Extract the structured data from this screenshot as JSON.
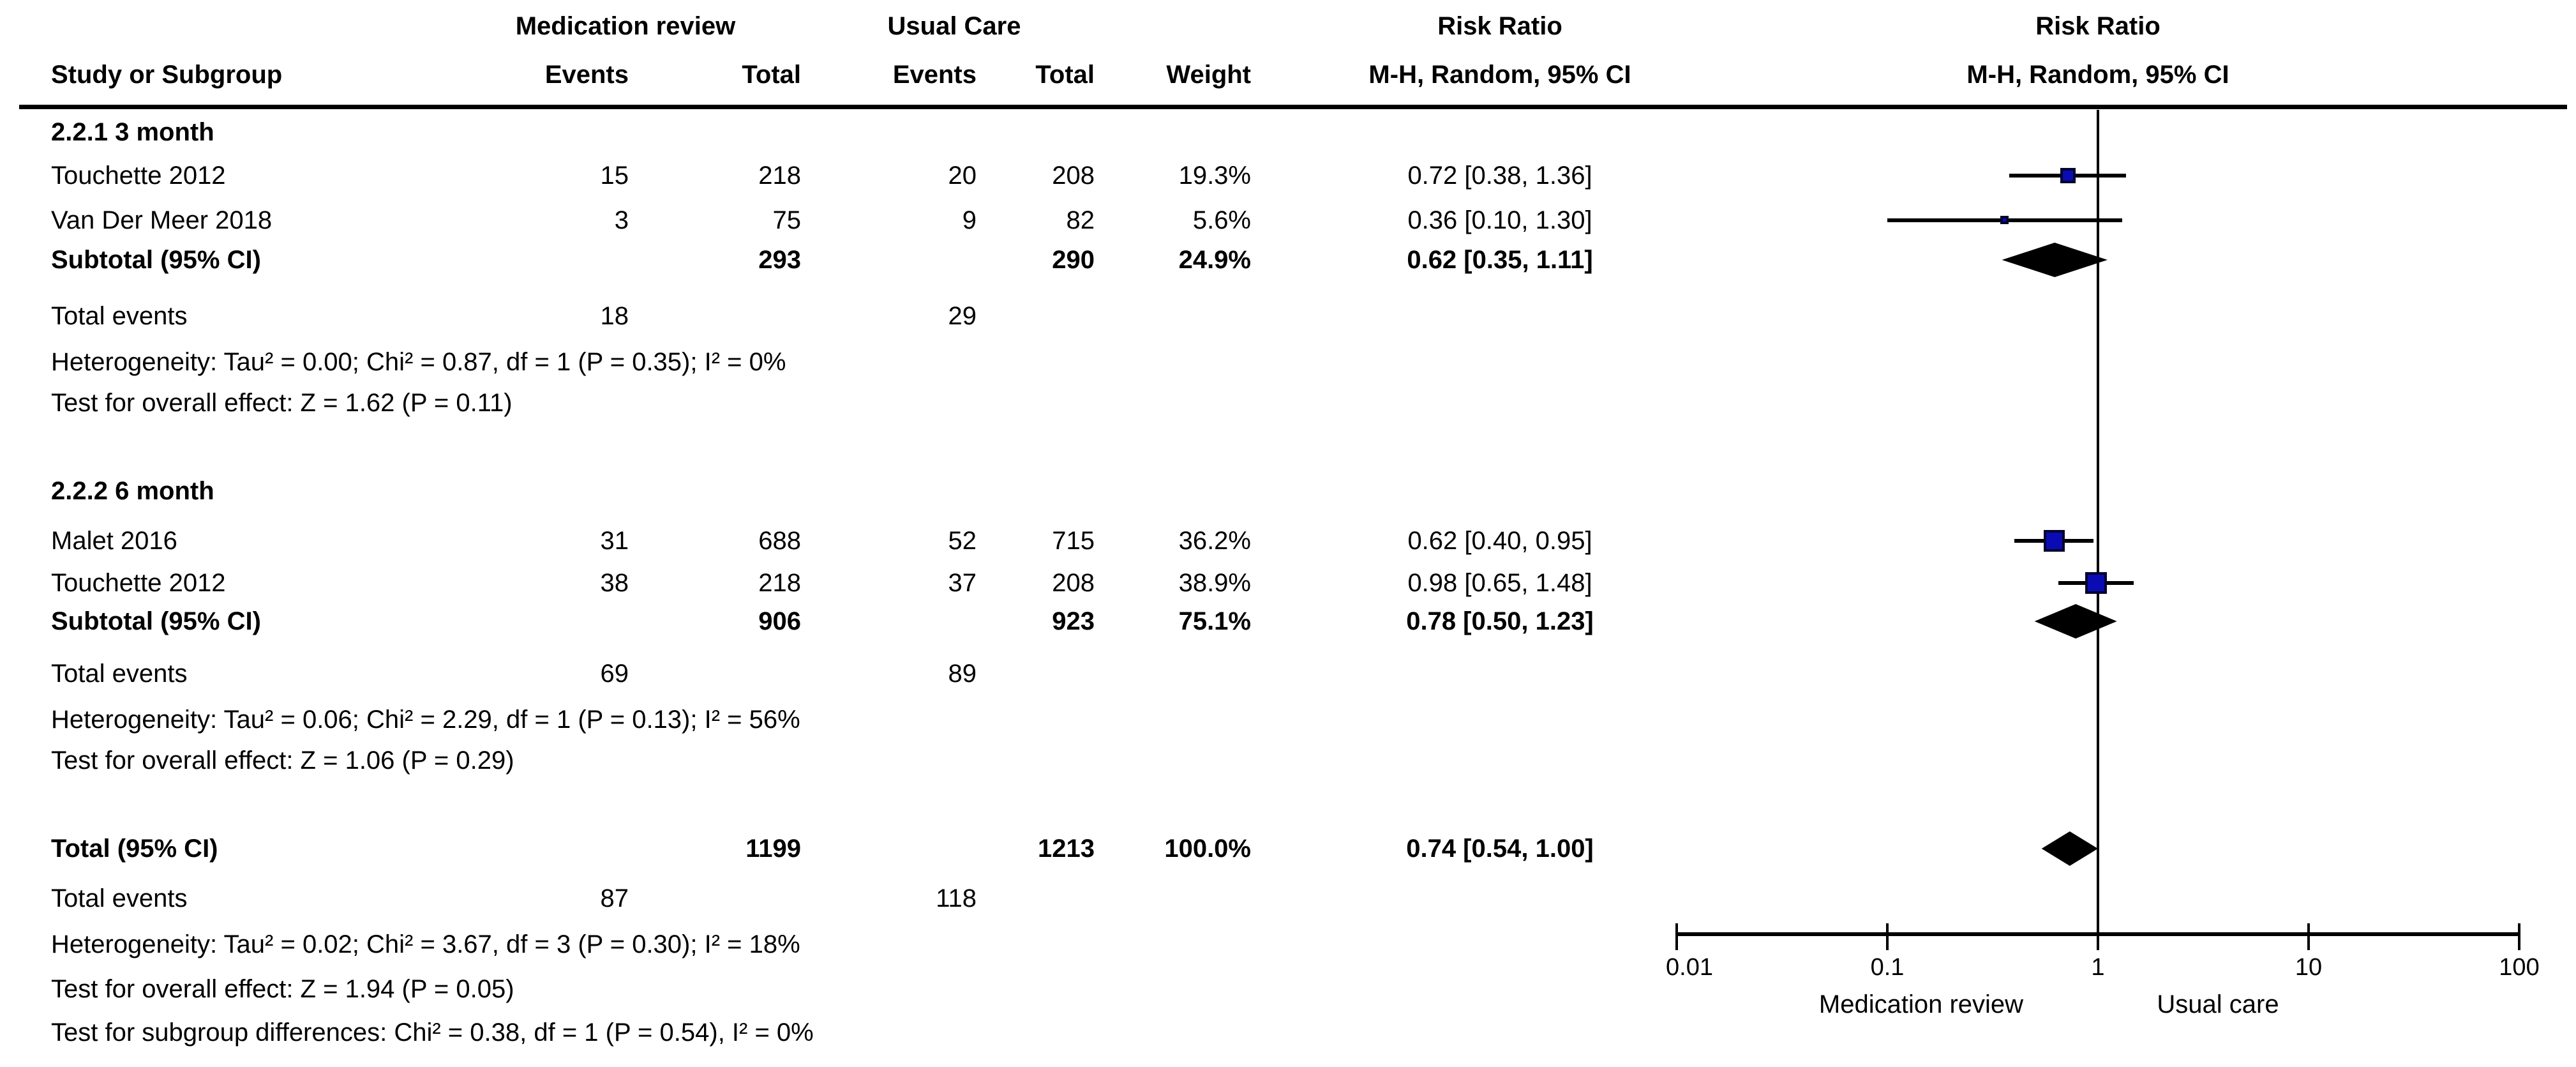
{
  "header": {
    "group1": "Medication review",
    "group2": "Usual Care",
    "rr": "Risk Ratio",
    "method": "M-H, Random, 95% CI",
    "study": "Study or Subgroup",
    "events": "Events",
    "total": "Total",
    "weight": "Weight"
  },
  "sections": [
    {
      "label": "2.2.1 3 month",
      "rows": [
        {
          "name": "Touchette 2012",
          "e1": "15",
          "t1": "218",
          "e2": "20",
          "t2": "208",
          "w": "19.3%",
          "rr": "0.72 [0.38, 1.36]"
        },
        {
          "name": "Van Der Meer 2018",
          "e1": "3",
          "t1": "75",
          "e2": "9",
          "t2": "82",
          "w": "5.6%",
          "rr": "0.36 [0.10, 1.30]"
        }
      ],
      "subtotal": {
        "label": "Subtotal (95% CI)",
        "t1": "293",
        "t2": "290",
        "w": "24.9%",
        "rr": "0.62 [0.35, 1.11]"
      },
      "total_events": {
        "label": "Total events",
        "e1": "18",
        "e2": "29"
      },
      "heterogeneity": "Heterogeneity: Tau² = 0.00; Chi² = 0.87, df = 1 (P = 0.35); I² = 0%",
      "overall_effect": "Test for overall effect: Z = 1.62 (P = 0.11)"
    },
    {
      "label": "2.2.2 6 month",
      "rows": [
        {
          "name": "Malet 2016",
          "e1": "31",
          "t1": "688",
          "e2": "52",
          "t2": "715",
          "w": "36.2%",
          "rr": "0.62 [0.40, 0.95]"
        },
        {
          "name": "Touchette 2012",
          "e1": "38",
          "t1": "218",
          "e2": "37",
          "t2": "208",
          "w": "38.9%",
          "rr": "0.98 [0.65, 1.48]"
        }
      ],
      "subtotal": {
        "label": "Subtotal (95% CI)",
        "t1": "906",
        "t2": "923",
        "w": "75.1%",
        "rr": "0.78 [0.50, 1.23]"
      },
      "total_events": {
        "label": "Total events",
        "e1": "69",
        "e2": "89"
      },
      "heterogeneity": "Heterogeneity: Tau² = 0.06; Chi² = 2.29, df = 1 (P = 0.13); I² = 56%",
      "overall_effect": "Test for overall effect: Z = 1.06 (P = 0.29)"
    }
  ],
  "total": {
    "row": {
      "label": "Total (95% CI)",
      "t1": "1199",
      "t2": "1213",
      "w": "100.0%",
      "rr": "0.74 [0.54, 1.00]"
    },
    "total_events": {
      "label": "Total events",
      "e1": "87",
      "e2": "118"
    },
    "heterogeneity": "Heterogeneity: Tau² = 0.02; Chi² = 3.67, df = 3 (P = 0.30); I² = 18%",
    "overall_effect": "Test for overall effect: Z = 1.94 (P = 0.05)",
    "subgroup_differences": "Test for subgroup differences: Chi² = 0.38, df = 1 (P = 0.54), I² = 0%"
  },
  "axis": {
    "tick_labels": [
      "0.01",
      "0.1",
      "1",
      "10",
      "100"
    ],
    "left_label": "Medication review",
    "right_label": "Usual care"
  },
  "colors": {
    "marker_blue": "#0b0bb4",
    "diamond_black": "#000000",
    "line_black": "#000000"
  },
  "chart_data": {
    "type": "forest",
    "effect_measure": "Risk Ratio, M-H, Random, 95% CI",
    "x_scale": "log10",
    "x_ticks": [
      0.01,
      0.1,
      1,
      10,
      100
    ],
    "null_line_at": 1,
    "xlabel_left": "Medication review",
    "xlabel_right": "Usual care",
    "rows": [
      {
        "kind": "study",
        "row_id": "r-g1-s1",
        "section": "2.2.1 3 month",
        "label": "Touchette 2012",
        "value": 0.72,
        "ci_low": 0.38,
        "ci_high": 1.36,
        "weight_pct": 19.3
      },
      {
        "kind": "study",
        "row_id": "r-g1-s2",
        "section": "2.2.1 3 month",
        "label": "Van Der Meer 2018",
        "value": 0.36,
        "ci_low": 0.1,
        "ci_high": 1.3,
        "weight_pct": 5.6
      },
      {
        "kind": "diamond",
        "row_id": "r-g1-sub",
        "section": "2.2.1 3 month",
        "label": "Subtotal (95% CI)",
        "value": 0.62,
        "ci_low": 0.35,
        "ci_high": 1.11
      },
      {
        "kind": "study",
        "row_id": "r-g2-s1",
        "section": "2.2.2 6 month",
        "label": "Malet 2016",
        "value": 0.62,
        "ci_low": 0.4,
        "ci_high": 0.95,
        "weight_pct": 36.2
      },
      {
        "kind": "study",
        "row_id": "r-g2-s2",
        "section": "2.2.2 6 month",
        "label": "Touchette 2012",
        "value": 0.98,
        "ci_low": 0.65,
        "ci_high": 1.48,
        "weight_pct": 38.9
      },
      {
        "kind": "diamond",
        "row_id": "r-g2-sub",
        "section": "2.2.2 6 month",
        "label": "Subtotal (95% CI)",
        "value": 0.78,
        "ci_low": 0.5,
        "ci_high": 1.23
      },
      {
        "kind": "diamond",
        "row_id": "r-total",
        "section": "overall",
        "label": "Total (95% CI)",
        "value": 0.74,
        "ci_low": 0.54,
        "ci_high": 1.0
      }
    ]
  }
}
